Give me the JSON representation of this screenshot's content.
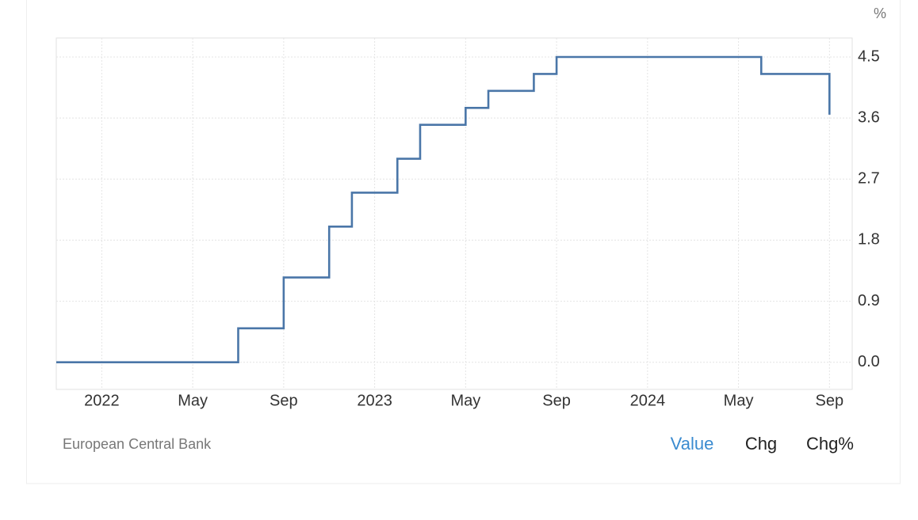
{
  "unit": "%",
  "source": "European Central Bank",
  "tabs": [
    "Value",
    "Chg",
    "Chg%"
  ],
  "chart_data": {
    "type": "step-line",
    "x": [
      "2021-11",
      "2022-07",
      "2022-09",
      "2022-11",
      "2022-12",
      "2023-02",
      "2023-03",
      "2023-05",
      "2023-06",
      "2023-08",
      "2023-09",
      "2024-06",
      "2024-09"
    ],
    "series": [
      {
        "color": "#4a76a8",
        "values": [
          0,
          0.5,
          1.25,
          2.0,
          2.5,
          3.0,
          3.5,
          3.75,
          4.0,
          4.25,
          4.5,
          4.25,
          3.65
        ]
      }
    ],
    "xlim": [
      "2021-11",
      "2024-10"
    ],
    "xticks": [
      {
        "value": "2022-01",
        "label": "2022"
      },
      {
        "value": "2022-05",
        "label": "May"
      },
      {
        "value": "2022-09",
        "label": "Sep"
      },
      {
        "value": "2023-01",
        "label": "2023"
      },
      {
        "value": "2023-05",
        "label": "May"
      },
      {
        "value": "2023-09",
        "label": "Sep"
      },
      {
        "value": "2024-01",
        "label": "2024"
      },
      {
        "value": "2024-05",
        "label": "May"
      },
      {
        "value": "2024-09",
        "label": "Sep"
      }
    ],
    "ylim": [
      -0.4,
      4.78
    ],
    "yticks": [
      {
        "value": 0,
        "label": "0.0"
      },
      0.9,
      1.8,
      2.7,
      3.6,
      4.5
    ],
    "grid": true
  }
}
